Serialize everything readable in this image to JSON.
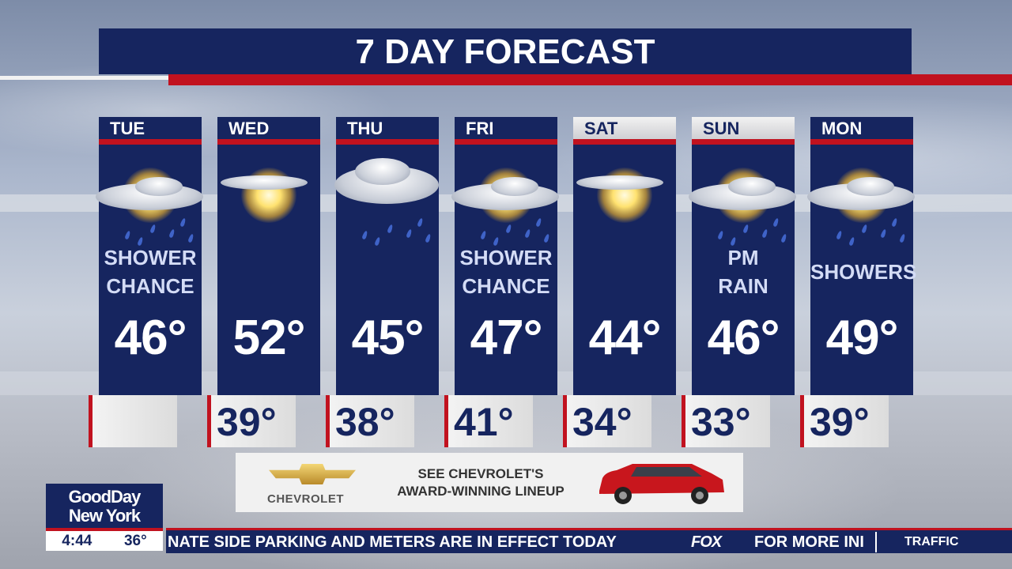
{
  "title": "7 DAY FORECAST",
  "days": [
    {
      "day": "TUE",
      "condition_lines": [
        "SHOWER",
        "CHANCE"
      ],
      "high": "46°",
      "low": "",
      "icon": "sun-cloud-rain-icon"
    },
    {
      "day": "WED",
      "condition_lines": [],
      "high": "52°",
      "low": "39°",
      "icon": "sun-cloud-icon"
    },
    {
      "day": "THU",
      "condition_lines": [],
      "high": "45°",
      "low": "38°",
      "icon": "cloud-rain-icon"
    },
    {
      "day": "FRI",
      "condition_lines": [
        "SHOWER",
        "CHANCE"
      ],
      "high": "47°",
      "low": "41°",
      "icon": "sun-cloud-rain-icon"
    },
    {
      "day": "SAT",
      "condition_lines": [],
      "high": "44°",
      "low": "34°",
      "icon": "sun-cloud-icon"
    },
    {
      "day": "SUN",
      "condition_lines": [
        "PM",
        "RAIN"
      ],
      "high": "46°",
      "low": "33°",
      "icon": "sun-cloud-rain-icon"
    },
    {
      "day": "MON",
      "condition_lines": [
        "SHOWERS"
      ],
      "high": "49°",
      "low": "39°",
      "icon": "sun-cloud-rain-icon"
    }
  ],
  "ad": {
    "brand": "CHEVROLET",
    "line1": "SEE CHEVROLET'S",
    "line2": "AWARD-WINNING LINEUP"
  },
  "show": {
    "line1": "GoodDay",
    "line2": "New York",
    "time": "4:44",
    "temp": "36°"
  },
  "ticker": {
    "text": "NATE SIDE PARKING AND METERS ARE IN EFFECT TODAY",
    "network": "FOX",
    "text2": "FOR MORE INI",
    "segment": "TRAFFIC"
  },
  "colors": {
    "navy": "#16255f",
    "red": "#c1121f"
  }
}
